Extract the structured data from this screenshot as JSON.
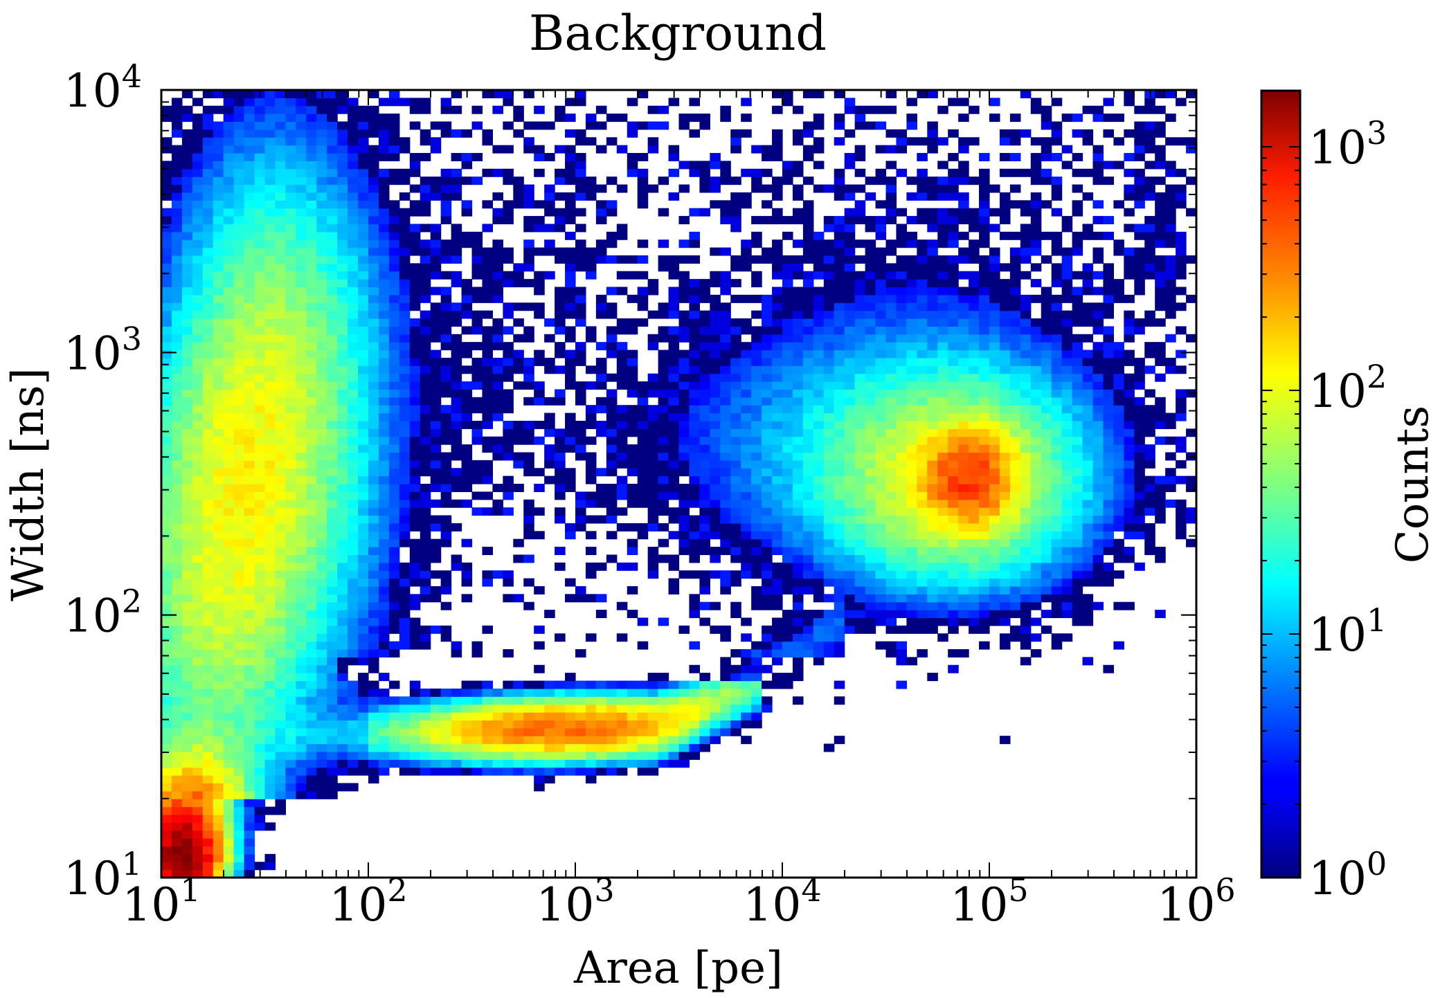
{
  "chart_data": {
    "type": "heatmap",
    "title": "Background",
    "xlabel": "Area [pe]",
    "ylabel": "Width [ns]",
    "colorbar_label": "Counts",
    "x_scale": "log",
    "y_scale": "log",
    "color_scale": "log",
    "xlim": [
      10,
      1000000
    ],
    "ylim": [
      10,
      10000
    ],
    "clim": [
      1,
      1700
    ],
    "x_ticks": [
      {
        "base": "10",
        "exp": "1"
      },
      {
        "base": "10",
        "exp": "2"
      },
      {
        "base": "10",
        "exp": "3"
      },
      {
        "base": "10",
        "exp": "4"
      },
      {
        "base": "10",
        "exp": "5"
      },
      {
        "base": "10",
        "exp": "6"
      }
    ],
    "y_ticks": [
      {
        "base": "10",
        "exp": "1"
      },
      {
        "base": "10",
        "exp": "2"
      },
      {
        "base": "10",
        "exp": "3"
      },
      {
        "base": "10",
        "exp": "4"
      }
    ],
    "colorbar_ticks": [
      {
        "base": "10",
        "exp": "0"
      },
      {
        "base": "10",
        "exp": "1"
      },
      {
        "base": "10",
        "exp": "2"
      },
      {
        "base": "10",
        "exp": "3"
      }
    ],
    "colormap": "jet",
    "grid": false,
    "bins": {
      "x": 100,
      "y": 100
    },
    "density_components": [
      {
        "name": "low-area cluster",
        "log_area": 1.15,
        "log_width": 1.1,
        "log_peak_counts": 3.2
      },
      {
        "name": "vertical band",
        "log_area_range": [
          1.0,
          1.8
        ],
        "log_width_range": [
          1.0,
          3.3
        ],
        "log_peak_counts": 2.0
      },
      {
        "name": "horizontal band",
        "log_area_range": [
          2.1,
          3.7
        ],
        "log_width": 1.57,
        "log_peak_counts": 2.6
      },
      {
        "name": "tail",
        "log_area_range": [
          3.7,
          4.3
        ],
        "log_width_range": [
          1.6,
          1.95
        ],
        "log_peak_counts": 0.8
      },
      {
        "name": "high-area cluster",
        "log_area": 4.9,
        "log_width": 2.5,
        "log_peak_counts": 2.5
      },
      {
        "name": "upper scatter",
        "log_area_range": [
          1.3,
          5.9
        ],
        "log_width_range": [
          2.0,
          4.0
        ],
        "log_peak_counts": 0.3
      }
    ]
  }
}
